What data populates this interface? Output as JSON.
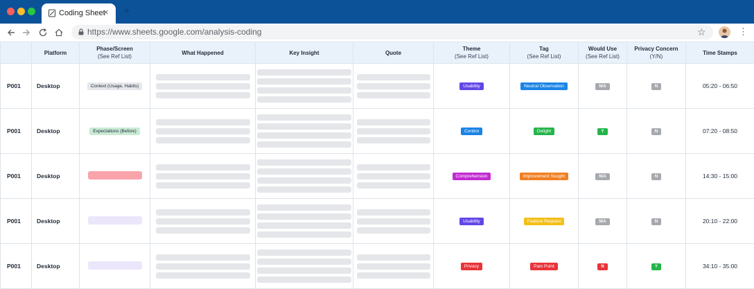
{
  "browser": {
    "tab_title": "Coding Sheet",
    "tab_close": "×",
    "new_tab": "+",
    "url": "https://www.sheets.google.com/analysis-coding",
    "star": "☆",
    "menu": "⋮"
  },
  "colors": {
    "titlebar": "#0b5299",
    "header_bg": "#e9f2fb",
    "usability": "#6346e8",
    "control": "#1a84e6",
    "comprehension": "#c12bd1",
    "privacy": "#e8343a",
    "neutral_observation": "#1a84e6",
    "delight": "#24b54a",
    "improvement_sought": "#f07f24",
    "feature_request": "#f4bf18",
    "pain_point": "#e8343a",
    "na_gray": "#a6a9ae",
    "yes_green": "#24b54a",
    "no_red": "#e8343a",
    "context_chip": "#e5e7eb",
    "expectations_chip": "#c9ead4",
    "pink_bar": "#f9a3ab",
    "lavender_bar": "#ece6fb"
  },
  "columns": [
    {
      "title": "",
      "sub": ""
    },
    {
      "title": "Platform",
      "sub": ""
    },
    {
      "title": "Phase/Screen",
      "sub": "(See Ref List)"
    },
    {
      "title": "What Happened",
      "sub": ""
    },
    {
      "title": "Key Insight",
      "sub": ""
    },
    {
      "title": "Quote",
      "sub": ""
    },
    {
      "title": "Theme",
      "sub": "(See Ref List)"
    },
    {
      "title": "Tag",
      "sub": "(See Ref List)"
    },
    {
      "title": "Would Use",
      "sub": "(See Ref List)"
    },
    {
      "title": "Privacy Concern",
      "sub": "(Y/N)"
    },
    {
      "title": "Time Stamps",
      "sub": ""
    }
  ],
  "rows": [
    {
      "participant": "P001",
      "platform": "Desktop",
      "phase": "Context (Usage, Habits)",
      "theme": "Usability",
      "tag": "Neutral Observation",
      "would_use": "N/A",
      "privacy": "N",
      "time": "05:20 - 06:50"
    },
    {
      "participant": "P001",
      "platform": "Desktop",
      "phase": "Expectations (Before)",
      "theme": "Control",
      "tag": "Delight",
      "would_use": "Y",
      "privacy": "N",
      "time": "07:20 - 08:50"
    },
    {
      "participant": "P001",
      "platform": "Desktop",
      "phase": "",
      "theme": "Comprehension",
      "tag": "Improvement Sought",
      "would_use": "N/A",
      "privacy": "N",
      "time": "14:30 - 15:00"
    },
    {
      "participant": "P001",
      "platform": "Desktop",
      "phase": "",
      "theme": "Usability",
      "tag": "Feature Request",
      "would_use": "N/A",
      "privacy": "N",
      "time": "20:10 - 22:00"
    },
    {
      "participant": "P001",
      "platform": "Desktop",
      "phase": "",
      "theme": "Privacy",
      "tag": "Pain Point",
      "would_use": "N",
      "privacy": "Y",
      "time": "34:10 - 35:00"
    }
  ]
}
